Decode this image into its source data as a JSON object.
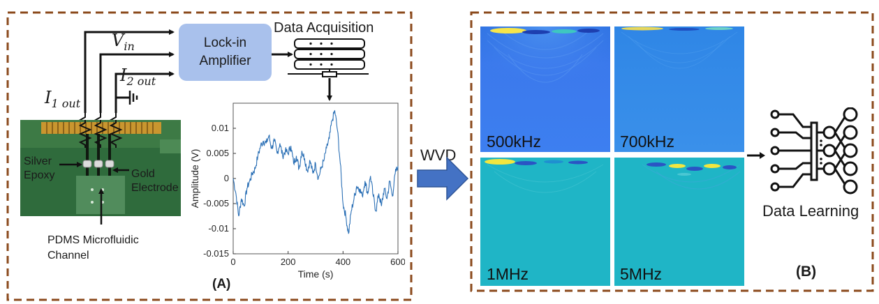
{
  "panel_a": {
    "signals": {
      "v_in": "V",
      "v_in_sub": "in",
      "i1": "I",
      "i1_sub": "1 out",
      "i2": "I",
      "i2_sub": "2 out"
    },
    "lockin_label_line1": "Lock-in",
    "lockin_label_line2": "Amplifier",
    "daq_label": "Data Acquisition",
    "silver_label_line1": "Silver",
    "silver_label_line2": "Epoxy",
    "gold_label_line1": "Gold",
    "gold_label_line2": "Electrode",
    "pdms_label_line1": "PDMS Microfluidic",
    "pdms_label_line2": "Channel",
    "panel_label": "(A)"
  },
  "arrow_label": "WVD",
  "panel_b": {
    "freq_labels": [
      "500kHz",
      "700kHz",
      "1MHz",
      "5MHz"
    ],
    "output_label": "Data Learning",
    "panel_label": "(B)"
  },
  "colors": {
    "border": "#8b4a1c",
    "lockin_fill": "#a9c1ec",
    "signal_line": "#2a6fb5",
    "arrow_fill": "#4472c4"
  },
  "chart_data": {
    "type": "line",
    "xlabel": "Time (s)",
    "ylabel": "Amplitude (V)",
    "xlim": [
      0,
      600
    ],
    "ylim": [
      -0.015,
      0.015
    ],
    "xticks": [
      "0",
      "200",
      "400",
      "600"
    ],
    "yticks": [
      "0.01",
      "0.005",
      "0",
      "-0.005",
      "-0.01",
      "-0.015"
    ],
    "series": [
      {
        "x": [
          0,
          10,
          20,
          30,
          40,
          50,
          60,
          70,
          80,
          90,
          100,
          110,
          120,
          130,
          140,
          150,
          160,
          170,
          180,
          190,
          200,
          210,
          220,
          230,
          240,
          250,
          260,
          270,
          280,
          290,
          300,
          310,
          320,
          330,
          340,
          350,
          360,
          370,
          380,
          390,
          400,
          410,
          420,
          430,
          440,
          450,
          460,
          470,
          480,
          490,
          500,
          510,
          520,
          530,
          540,
          550,
          560,
          570,
          580,
          590,
          600
        ],
        "y": [
          0.0,
          -0.003,
          -0.0075,
          -0.004,
          -0.0055,
          -0.002,
          -0.0005,
          0.001,
          0.002,
          0.0045,
          0.0065,
          0.0075,
          0.007,
          0.0085,
          0.006,
          0.0075,
          0.005,
          0.007,
          0.0045,
          0.0055,
          0.005,
          0.0065,
          0.003,
          0.0045,
          0.002,
          0.0055,
          0.004,
          0.0015,
          0.0035,
          0.001,
          0.003,
          0.0,
          0.002,
          0.0035,
          0.006,
          0.008,
          0.0115,
          0.0135,
          0.0095,
          0.003,
          -0.005,
          -0.0075,
          -0.011,
          -0.0065,
          -0.004,
          -0.0015,
          -0.002,
          -0.0035,
          -0.0005,
          -0.003,
          0.0005,
          -0.0035,
          -0.0065,
          -0.003,
          -0.0055,
          -0.002,
          -0.004,
          -0.0005,
          -0.0035,
          0.001,
          0.0025
        ]
      }
    ]
  }
}
